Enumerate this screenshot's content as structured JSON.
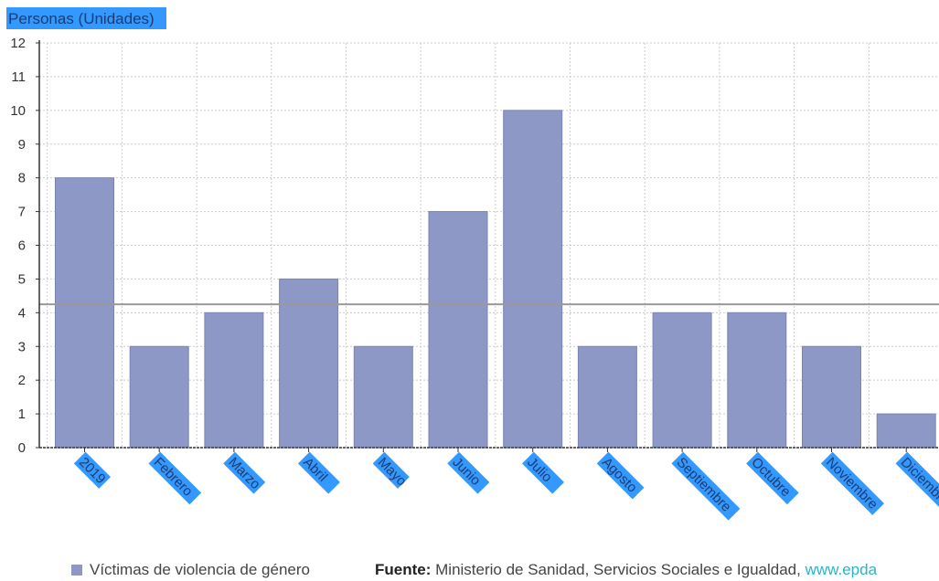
{
  "chart_data": {
    "type": "bar",
    "ylabel": "Personas (Unidades)",
    "xlabel": "",
    "categories": [
      "2019",
      "Febrero",
      "Marzo",
      "Abril",
      "Mayo",
      "Junio",
      "Julio",
      "Agosto",
      "Septiembre",
      "Octubre",
      "Noviembre",
      "Diciembre"
    ],
    "series": [
      {
        "name": "Víctimas de violencia de género",
        "values": [
          8,
          3,
          4,
          5,
          3,
          7,
          10,
          3,
          4,
          4,
          3,
          1
        ]
      }
    ],
    "yticks": [
      "0",
      "1",
      "2",
      "3",
      "4",
      "5",
      "6",
      "7",
      "8",
      "9",
      "10",
      "11",
      "12"
    ],
    "ylim": [
      0,
      12
    ],
    "average_line": 4.25,
    "grid": true
  },
  "colors": {
    "bar": "#8e98c6",
    "grid": "#cccccc",
    "average_line": "#999999",
    "label_highlight": "#3399ff",
    "axis": "#333333"
  },
  "legend": {
    "label": "Víctimas de violencia de género"
  },
  "source": {
    "label": "Fuente:",
    "text": "Ministerio de Sanidad, Servicios Sociales e Igualdad,",
    "link": "www.epda"
  }
}
